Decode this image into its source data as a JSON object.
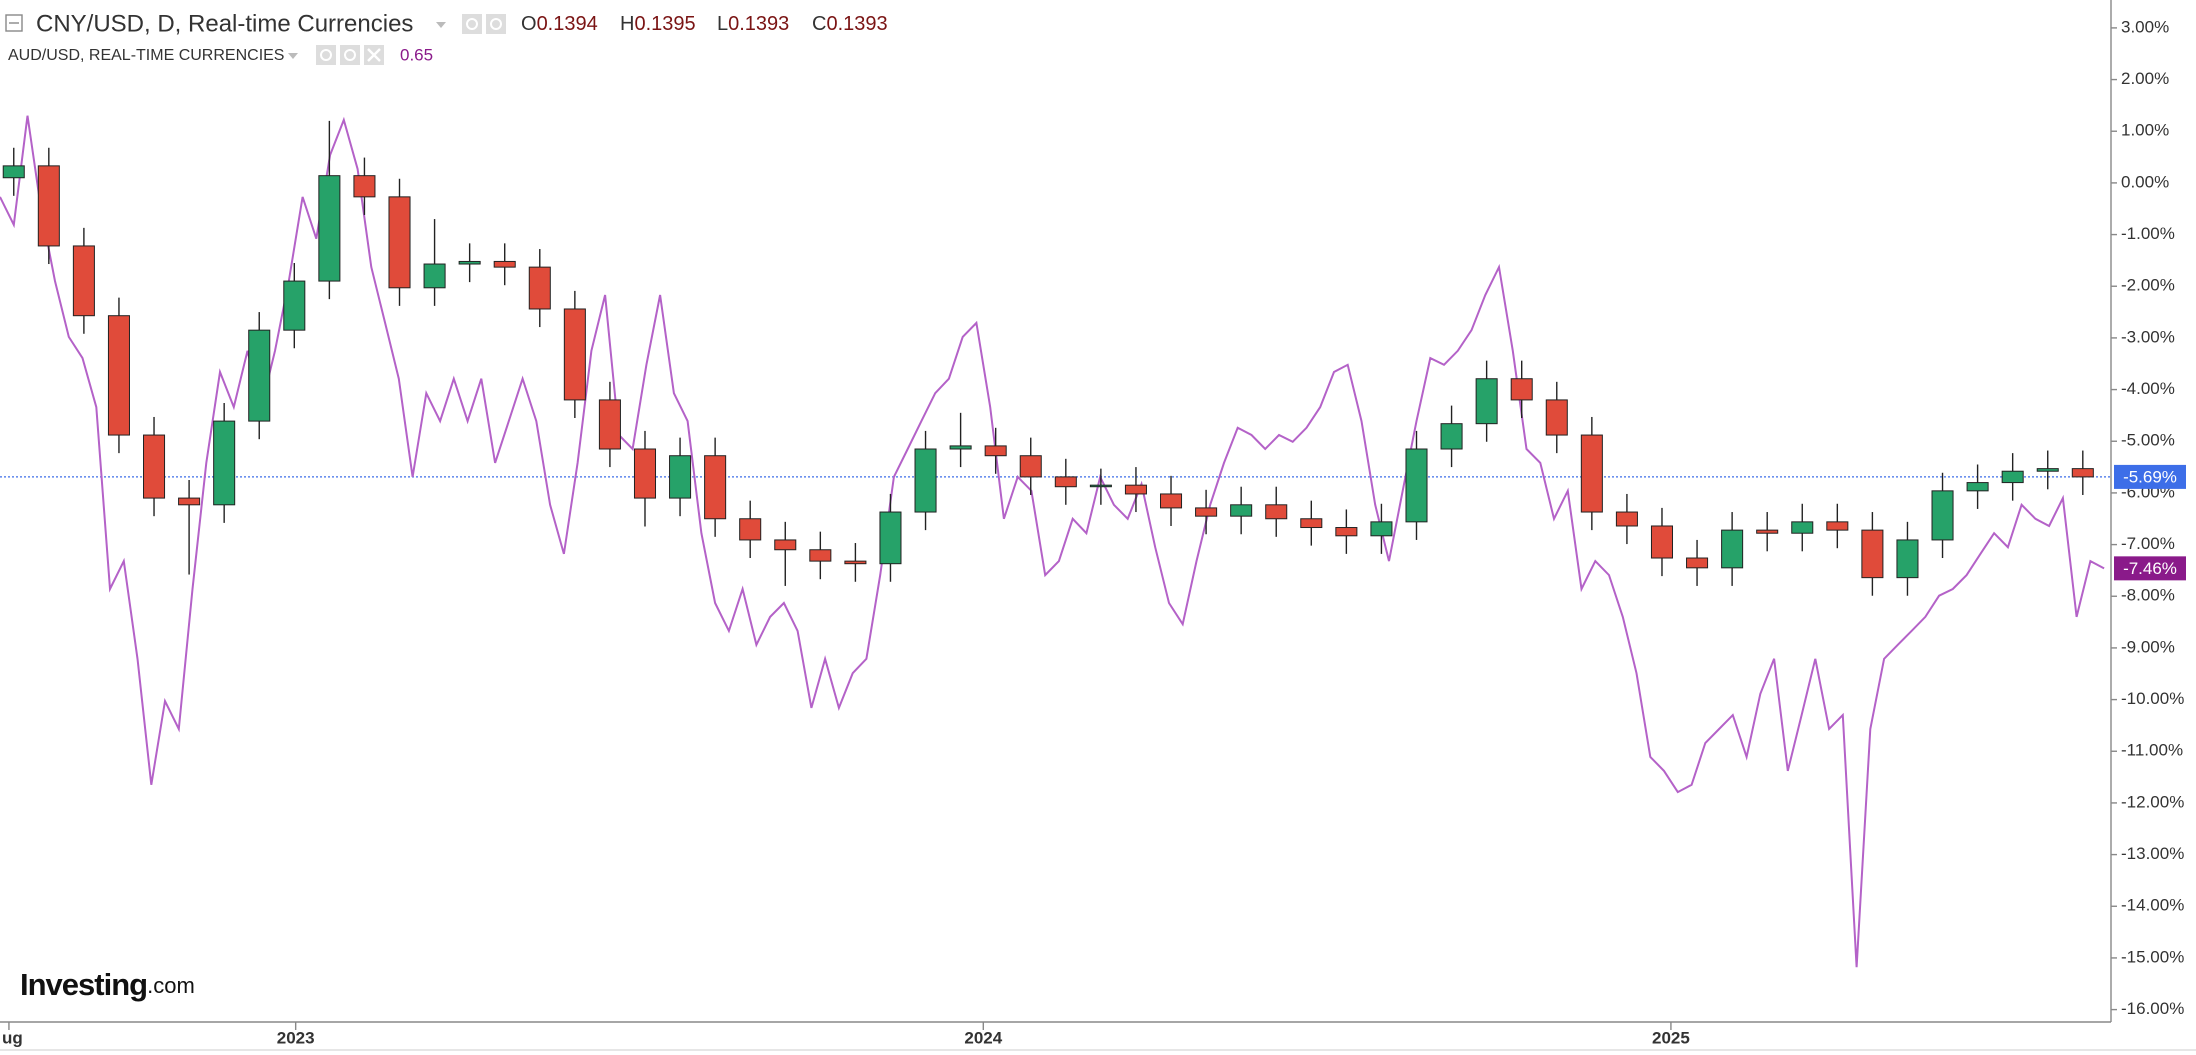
{
  "chart_data": {
    "type": "candlestick",
    "watermark": "Investing",
    "watermark_suffix": ".com",
    "xlim": [
      2022.57,
      2025.64
    ],
    "xticks": [
      {
        "value": 2022.583,
        "label": "ug"
      },
      {
        "value": 2023,
        "label": "2023"
      },
      {
        "value": 2024,
        "label": "2024"
      },
      {
        "value": 2025,
        "label": "2025"
      }
    ],
    "ylim": [
      -16.24,
      3.54
    ],
    "yticks": [
      {
        "value": 3,
        "label": "3.00%"
      },
      {
        "value": 2,
        "label": "2.00%"
      },
      {
        "value": 1,
        "label": "1.00%"
      },
      {
        "value": 0,
        "label": "0.00%"
      },
      {
        "value": -1,
        "label": "-1.00%"
      },
      {
        "value": -2,
        "label": "-2.00%"
      },
      {
        "value": -3,
        "label": "-3.00%"
      },
      {
        "value": -4,
        "label": "-4.00%"
      },
      {
        "value": -5,
        "label": "-5.00%"
      },
      {
        "value": -6,
        "label": "-6.00%"
      },
      {
        "value": -7,
        "label": "-7.00%"
      },
      {
        "value": -8,
        "label": "-8.00%"
      },
      {
        "value": -9,
        "label": "-9.00%"
      },
      {
        "value": -10,
        "label": "-10.00%"
      },
      {
        "value": -11,
        "label": "-11.00%"
      },
      {
        "value": -12,
        "label": "-12.00%"
      },
      {
        "value": -13,
        "label": "-13.00%"
      },
      {
        "value": -14,
        "label": "-14.00%"
      },
      {
        "value": -15,
        "label": "-15.00%"
      },
      {
        "value": -16,
        "label": "-16.00%"
      }
    ],
    "series": [
      {
        "name": "CNY/USD, D, Real-time Currencies",
        "type": "candlestick",
        "up_color": "#26a269",
        "down_color": "#e04b3a",
        "ohlc_labels": [
          {
            "label": "O",
            "value": 0.1394
          },
          {
            "label": "H",
            "value": 0.1395
          },
          {
            "label": "L",
            "value": 0.1393
          },
          {
            "label": "C",
            "value": 0.1393
          }
        ],
        "current": {
          "value": -5.69,
          "label": "-5.69%",
          "color": "#3d6ee8"
        },
        "x": [
          2022.59,
          2022.641,
          2022.692,
          2022.743,
          2022.794,
          2022.845,
          2022.896,
          2022.947,
          2022.998,
          2023.049,
          2023.1,
          2023.151,
          2023.202,
          2023.253,
          2023.304,
          2023.355,
          2023.406,
          2023.457,
          2023.508,
          2023.559,
          2023.61,
          2023.661,
          2023.712,
          2023.763,
          2023.814,
          2023.865,
          2023.916,
          2023.967,
          2024.018,
          2024.069,
          2024.12,
          2024.171,
          2024.222,
          2024.273,
          2024.324,
          2024.375,
          2024.426,
          2024.477,
          2024.528,
          2024.579,
          2024.63,
          2024.681,
          2024.732,
          2024.783,
          2024.834,
          2024.885,
          2024.936,
          2024.987,
          2025.038,
          2025.089,
          2025.14,
          2025.191,
          2025.242,
          2025.293,
          2025.344,
          2025.395,
          2025.446,
          2025.497,
          2025.548,
          2025.599
        ],
        "open": [
          0.1,
          0.33,
          -1.22,
          -2.57,
          -4.88,
          -6.1,
          -6.23,
          -4.61,
          -2.85,
          -1.9,
          0.14,
          -0.27,
          -2.03,
          -1.57,
          -1.52,
          -1.63,
          -2.44,
          -4.2,
          -5.15,
          -6.1,
          -5.28,
          -6.5,
          -6.91,
          -7.1,
          -7.32,
          -7.37,
          -6.37,
          -5.15,
          -5.09,
          -5.28,
          -5.69,
          -5.88,
          -5.85,
          -6.02,
          -6.29,
          -6.45,
          -6.23,
          -6.5,
          -6.67,
          -6.83,
          -6.56,
          -5.15,
          -4.66,
          -3.79,
          -4.2,
          -4.88,
          -6.37,
          -6.64,
          -7.26,
          -7.45,
          -6.72,
          -6.78,
          -6.56,
          -6.72,
          -7.64,
          -6.91,
          -5.96,
          -5.8,
          -5.58,
          -5.53
        ],
        "high": [
          0.68,
          0.68,
          -0.87,
          -2.22,
          -4.53,
          -5.75,
          -4.26,
          -2.5,
          -1.55,
          1.2,
          0.49,
          0.08,
          -0.7,
          -1.17,
          -1.17,
          -1.28,
          -2.09,
          -3.85,
          -4.8,
          -4.93,
          -4.93,
          -6.15,
          -6.56,
          -6.75,
          -6.97,
          -6.02,
          -4.8,
          -4.45,
          -4.74,
          -4.93,
          -5.34,
          -5.53,
          -5.5,
          -5.67,
          -5.94,
          -5.88,
          -5.88,
          -6.15,
          -6.32,
          -6.21,
          -4.8,
          -4.31,
          -3.44,
          -3.44,
          -3.85,
          -4.53,
          -6.02,
          -6.29,
          -6.91,
          -6.37,
          -6.37,
          -6.21,
          -6.21,
          -6.37,
          -6.56,
          -5.61,
          -5.45,
          -5.23,
          -5.18,
          -5.18
        ],
        "low": [
          -0.25,
          -1.57,
          -2.92,
          -5.23,
          -6.45,
          -7.58,
          -6.58,
          -4.96,
          -3.2,
          -2.25,
          -0.62,
          -2.38,
          -2.38,
          -1.92,
          -1.98,
          -2.79,
          -4.55,
          -5.5,
          -6.65,
          -6.45,
          -6.85,
          -7.26,
          -7.8,
          -7.67,
          -7.72,
          -7.72,
          -6.72,
          -5.5,
          -5.63,
          -6.04,
          -6.23,
          -6.23,
          -6.37,
          -6.64,
          -6.8,
          -6.8,
          -6.85,
          -7.02,
          -7.18,
          -7.18,
          -6.91,
          -5.5,
          -5.01,
          -4.55,
          -5.23,
          -6.72,
          -6.99,
          -7.61,
          -7.8,
          -7.8,
          -7.13,
          -7.13,
          -7.07,
          -7.99,
          -7.99,
          -7.26,
          -6.31,
          -6.15,
          -5.93,
          -6.04
        ],
        "close": [
          0.33,
          -1.22,
          -2.57,
          -4.88,
          -6.1,
          -6.23,
          -4.61,
          -2.85,
          -1.9,
          0.14,
          -0.27,
          -2.03,
          -1.57,
          -1.52,
          -1.63,
          -2.44,
          -4.2,
          -5.15,
          -6.1,
          -5.28,
          -6.5,
          -6.91,
          -7.1,
          -7.32,
          -7.37,
          -6.37,
          -5.15,
          -5.09,
          -5.28,
          -5.69,
          -5.88,
          -5.85,
          -6.02,
          -6.29,
          -6.45,
          -6.23,
          -6.5,
          -6.67,
          -6.83,
          -6.56,
          -5.15,
          -4.66,
          -3.79,
          -4.2,
          -4.88,
          -6.37,
          -6.64,
          -7.26,
          -7.45,
          -6.72,
          -6.78,
          -6.56,
          -6.72,
          -7.64,
          -6.91,
          -5.96,
          -5.8,
          -5.58,
          -5.53,
          -5.69
        ]
      },
      {
        "name": "AUD/USD, REAL-TIME CURRENCIES",
        "type": "line",
        "color": "#b462c8",
        "last_price": 0.65,
        "current": {
          "value": -7.46,
          "label": "-7.46%",
          "color": "#8a1a8a"
        },
        "x": [
          2022.57,
          2022.59,
          2022.61,
          2022.63,
          2022.65,
          2022.67,
          2022.69,
          2022.71,
          2022.73,
          2022.75,
          2022.77,
          2022.79,
          2022.81,
          2022.83,
          2022.85,
          2022.87,
          2022.89,
          2022.91,
          2022.93,
          2022.95,
          2022.97,
          2022.99,
          2023.01,
          2023.03,
          2023.05,
          2023.07,
          2023.09,
          2023.11,
          2023.13,
          2023.15,
          2023.17,
          2023.19,
          2023.21,
          2023.23,
          2023.25,
          2023.27,
          2023.29,
          2023.31,
          2023.33,
          2023.35,
          2023.37,
          2023.39,
          2023.41,
          2023.43,
          2023.45,
          2023.47,
          2023.49,
          2023.51,
          2023.53,
          2023.55,
          2023.57,
          2023.59,
          2023.61,
          2023.63,
          2023.65,
          2023.67,
          2023.69,
          2023.71,
          2023.73,
          2023.75,
          2023.77,
          2023.79,
          2023.81,
          2023.83,
          2023.85,
          2023.87,
          2023.89,
          2023.91,
          2023.93,
          2023.95,
          2023.97,
          2023.99,
          2024.01,
          2024.03,
          2024.05,
          2024.07,
          2024.09,
          2024.11,
          2024.13,
          2024.15,
          2024.17,
          2024.19,
          2024.21,
          2024.23,
          2024.25,
          2024.27,
          2024.29,
          2024.31,
          2024.33,
          2024.35,
          2024.37,
          2024.39,
          2024.41,
          2024.43,
          2024.45,
          2024.47,
          2024.49,
          2024.51,
          2024.53,
          2024.55,
          2024.57,
          2024.59,
          2024.61,
          2024.63,
          2024.65,
          2024.67,
          2024.69,
          2024.71,
          2024.73,
          2024.75,
          2024.77,
          2024.79,
          2024.81,
          2024.83,
          2024.85,
          2024.87,
          2024.89,
          2024.91,
          2024.93,
          2024.95,
          2024.97,
          2024.99,
          2025.01,
          2025.03,
          2025.05,
          2025.07,
          2025.09,
          2025.11,
          2025.13,
          2025.15,
          2025.17,
          2025.19,
          2025.21,
          2025.23,
          2025.25,
          2025.27,
          2025.29,
          2025.31,
          2025.33,
          2025.35,
          2025.37,
          2025.39,
          2025.41,
          2025.43,
          2025.45,
          2025.47,
          2025.49,
          2025.51,
          2025.53,
          2025.55,
          2025.57,
          2025.59,
          2025.61,
          2025.63
        ],
        "values": [
          -0.27,
          -0.81,
          1.3,
          -0.54,
          -1.9,
          -2.98,
          -3.39,
          -4.34,
          -7.86,
          -7.32,
          -9.21,
          -11.65,
          -10.03,
          -10.57,
          -7.86,
          -5.42,
          -3.66,
          -4.34,
          -3.25,
          -4.34,
          -3.25,
          -1.9,
          -0.27,
          -1.08,
          0.54,
          1.22,
          0.27,
          -1.63,
          -2.71,
          -3.79,
          -5.69,
          -4.07,
          -4.61,
          -3.79,
          -4.61,
          -3.79,
          -5.42,
          -4.61,
          -3.79,
          -4.61,
          -6.23,
          -7.18,
          -5.42,
          -3.25,
          -2.17,
          -4.88,
          -5.15,
          -3.52,
          -2.17,
          -4.07,
          -4.61,
          -6.78,
          -8.13,
          -8.67,
          -7.86,
          -8.94,
          -8.4,
          -8.13,
          -8.67,
          -10.16,
          -9.21,
          -10.16,
          -9.49,
          -9.21,
          -7.59,
          -5.69,
          -5.15,
          -4.61,
          -4.07,
          -3.79,
          -2.98,
          -2.71,
          -4.34,
          -6.5,
          -5.69,
          -5.96,
          -7.59,
          -7.32,
          -6.5,
          -6.78,
          -5.69,
          -6.23,
          -6.5,
          -5.83,
          -7.05,
          -8.13,
          -8.54,
          -7.32,
          -6.23,
          -5.42,
          -4.74,
          -4.88,
          -5.15,
          -4.88,
          -5.01,
          -4.74,
          -4.34,
          -3.66,
          -3.52,
          -4.61,
          -6.23,
          -7.32,
          -5.96,
          -4.61,
          -3.39,
          -3.52,
          -3.25,
          -2.85,
          -2.17,
          -1.63,
          -3.25,
          -5.15,
          -5.42,
          -6.5,
          -5.96,
          -7.86,
          -7.32,
          -7.59,
          -8.4,
          -9.49,
          -11.11,
          -11.38,
          -11.79,
          -11.65,
          -10.84,
          -10.57,
          -10.3,
          -11.11,
          -9.89,
          -9.21,
          -11.38,
          -10.3,
          -9.21,
          -10.57,
          -10.3,
          -15.18,
          -10.57,
          -9.21,
          -8.94,
          -8.67,
          -8.4,
          -7.99,
          -7.86,
          -7.59,
          -7.18,
          -6.78,
          -7.05,
          -6.23,
          -6.5,
          -6.64,
          -6.1,
          -8.4,
          -7.32,
          -7.46
        ]
      }
    ]
  }
}
